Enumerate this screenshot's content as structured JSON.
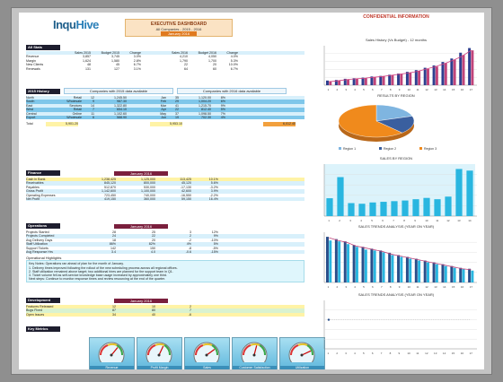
{
  "header": {
    "logo_text": "Inqu",
    "logo_accent": "Hive",
    "title": "EXECUTIVE DASHBOARD",
    "subtitle": "All Companies - 2015 - 2016",
    "period": "January 2016",
    "confidential": "CONFIDENTIAL INFORMATION"
  },
  "sections": {
    "all_stats": "All Stats",
    "history": "2015 History",
    "finance": "Finance",
    "operations": "Operations",
    "development": "Development",
    "key_metrics": "Key Metrics"
  },
  "all_stats": {
    "headers": [
      "",
      "Sales 2015",
      "Budget 2015",
      "Change",
      "",
      "Sales 2016",
      "Budget 2016",
      "Change"
    ],
    "rows": [
      [
        "Revenue",
        "3,857",
        "3,745",
        "3.0%",
        "",
        "4,210",
        "4,050",
        "4.0%"
      ],
      [
        "Margin",
        "1,624",
        "1,580",
        "2.8%",
        "",
        "1,790",
        "1,700",
        "5.3%"
      ],
      [
        "New Clients",
        "48",
        "45",
        "6.7%",
        "",
        "22",
        "20",
        "10.0%"
      ],
      [
        "Renewals",
        "131",
        "127",
        "3.1%",
        "",
        "64",
        "60",
        "6.7%"
      ]
    ]
  },
  "history": {
    "group_left": "Companies with 2015 data available",
    "group_right": "Companies with 2016 data available",
    "rows": [
      [
        "North",
        "Retail",
        "12",
        "1,245.50",
        "",
        "Jan",
        "35",
        "1,120.00",
        "8%"
      ],
      [
        "South",
        "Wholesale",
        "9",
        "987.30",
        "",
        "Feb",
        "29",
        "1,004.20",
        "6%"
      ],
      [
        "East",
        "Services",
        "14",
        "1,322.80",
        "",
        "Mar",
        "41",
        "1,215.70",
        "9%"
      ],
      [
        "West",
        "Retail",
        "7",
        "654.10",
        "",
        "Apr",
        "22",
        "812.40",
        "5%"
      ],
      [
        "Central",
        "Online",
        "11",
        "1,102.60",
        "",
        "May",
        "37",
        "1,098.50",
        "7%"
      ],
      [
        "Export",
        "Wholesale",
        "6",
        "588.90",
        "",
        "Jun",
        "19",
        "702.30",
        "4%"
      ]
    ],
    "total_label": "Total",
    "total_a": "5,901.20",
    "total_b": "5,953.10",
    "total_c": "6,012.40"
  },
  "finance": {
    "header": "January 2016",
    "rows": [
      [
        "Cash in Bank",
        "1,238,425",
        "1,125,000",
        "113,425",
        "10.1%"
      ],
      [
        "Receivables",
        "845,120",
        "800,000",
        "45,120",
        "5.6%"
      ],
      [
        "Payables",
        "512,870",
        "530,000",
        "-17,130",
        "-3.2%"
      ],
      [
        "Gross Profit",
        "1,142,600",
        "1,100,000",
        "42,600",
        "3.9%"
      ],
      [
        "Operating Expenses",
        "723,450",
        "740,000",
        "-16,550",
        "-2.2%"
      ],
      [
        "Net Profit",
        "419,150",
        "360,000",
        "59,150",
        "16.4%"
      ]
    ]
  },
  "operations": {
    "header": "January 2016",
    "rows": [
      [
        "Projects Started",
        "28",
        "25",
        "3",
        "12%"
      ],
      [
        "Projects Completed",
        "24",
        "22",
        "2",
        "9%"
      ],
      [
        "Avg Delivery Days",
        "18",
        "20",
        "-2",
        "-10%"
      ],
      [
        "Staff Utilization",
        "86%",
        "82%",
        "4%",
        "5%"
      ],
      [
        "Support Tickets",
        "142",
        "150",
        "-8",
        "-5%"
      ],
      [
        "Avg Response Hrs",
        "3.4",
        "4.0",
        "-0.6",
        "-15%"
      ]
    ],
    "notes_title": "Operational Highlights",
    "notes": [
      "Key Notes: Operations ran ahead of plan for the month of January.",
      "1. Delivery times improved following the rollout of the new scheduling process across all regional offices.",
      "2. Staff utilization remained above target; two additional hires are planned for the support team in Q1.",
      "3. Ticket volume fell as self-service knowledge base usage increased by approximately one third.",
      "Next steps: Continue to monitor response times and review resourcing at the end of the quarter."
    ]
  },
  "development": {
    "header": "January 2016",
    "rows": [
      [
        "Features Released",
        "12",
        "10",
        "2"
      ],
      [
        "Bugs Fixed",
        "87",
        "80",
        "7"
      ],
      [
        "Open Issues",
        "34",
        "40",
        "-6"
      ]
    ]
  },
  "gauges": [
    {
      "label": "Revenue",
      "value": 0.72
    },
    {
      "label": "Profit Margin",
      "value": 0.64
    },
    {
      "label": "Sales",
      "value": 0.8
    },
    {
      "label": "Customer Satisfaction",
      "value": 0.58
    },
    {
      "label": "Utilization",
      "value": 0.86
    }
  ],
  "chart_data": [
    {
      "type": "bar",
      "title": "Sales History (Vs Budget) - 12 months",
      "categories": [
        "1",
        "2",
        "3",
        "4",
        "5",
        "6",
        "7",
        "8",
        "9",
        "10",
        "11",
        "12",
        "13",
        "14",
        "15",
        "16",
        "17"
      ],
      "series": [
        {
          "name": "Sales",
          "values": [
            40,
            45,
            55,
            60,
            65,
            75,
            80,
            90,
            100,
            115,
            130,
            150,
            170,
            200,
            230,
            280,
            320
          ]
        },
        {
          "name": "Budget",
          "values": [
            35,
            40,
            50,
            55,
            60,
            70,
            78,
            85,
            95,
            110,
            125,
            140,
            160,
            190,
            220,
            260,
            300
          ]
        }
      ],
      "line_values": [
        30,
        38,
        48,
        55,
        60,
        68,
        75,
        85,
        95,
        105,
        120,
        140,
        160,
        185,
        215,
        250,
        300
      ],
      "colors": {
        "Sales": "#2e3f8f",
        "Budget": "#c0447a",
        "line": "#d04080"
      }
    },
    {
      "type": "pie",
      "title": "RESULTS BY REGION",
      "categories": [
        "Region 1",
        "Region 2",
        "Region 3"
      ],
      "values": [
        20,
        18,
        62
      ],
      "colors": [
        "#7fb5e0",
        "#3a5f9f",
        "#f08a1c"
      ]
    },
    {
      "type": "bar",
      "title": "SALES BY REGION",
      "categories": [
        "1",
        "2",
        "3",
        "4",
        "5",
        "6",
        "7",
        "8",
        "9",
        "10",
        "11",
        "12",
        "13",
        "14"
      ],
      "values": [
        55,
        120,
        40,
        38,
        42,
        44,
        46,
        48,
        52,
        56,
        52,
        60,
        145,
        140
      ],
      "ylim": [
        0,
        160
      ],
      "color": "#29b6e0"
    },
    {
      "type": "bar",
      "title": "SALES TRENDS ANALYSIS (YEAR ON YEAR)",
      "categories": [
        "1",
        "2",
        "3",
        "4",
        "5",
        "6",
        "7",
        "8",
        "9",
        "10",
        "11",
        "12",
        "13",
        "14",
        "15",
        "16",
        "17"
      ],
      "series": [
        {
          "name": "2015",
          "values": [
            100,
            95,
            90,
            82,
            78,
            74,
            70,
            65,
            60,
            56,
            52,
            48,
            44,
            40,
            36,
            32,
            30
          ]
        },
        {
          "name": "2016",
          "values": [
            92,
            90,
            84,
            78,
            72,
            70,
            66,
            60,
            56,
            52,
            48,
            44,
            40,
            36,
            32,
            30,
            26
          ]
        }
      ],
      "line_values": [
        98,
        92,
        88,
        80,
        76,
        72,
        68,
        62,
        58,
        54,
        50,
        46,
        42,
        38,
        34,
        30,
        28
      ],
      "colors": {
        "2015": "#2a4f8a",
        "2016": "#29b6e0",
        "line": "#c0447a"
      }
    },
    {
      "type": "line",
      "title": "SALES TRENDS ANALYSIS (YEAR ON YEAR)",
      "categories": [
        "1",
        "2",
        "3",
        "4",
        "5",
        "6",
        "7",
        "8",
        "9",
        "10",
        "11",
        "12",
        "13",
        "14",
        "15",
        "16",
        "17"
      ],
      "values": [
        12,
        12,
        12,
        12,
        12,
        12,
        12,
        12,
        12,
        12,
        12,
        12,
        12,
        12,
        12,
        12,
        12
      ],
      "color": "#2a4f8a"
    }
  ]
}
